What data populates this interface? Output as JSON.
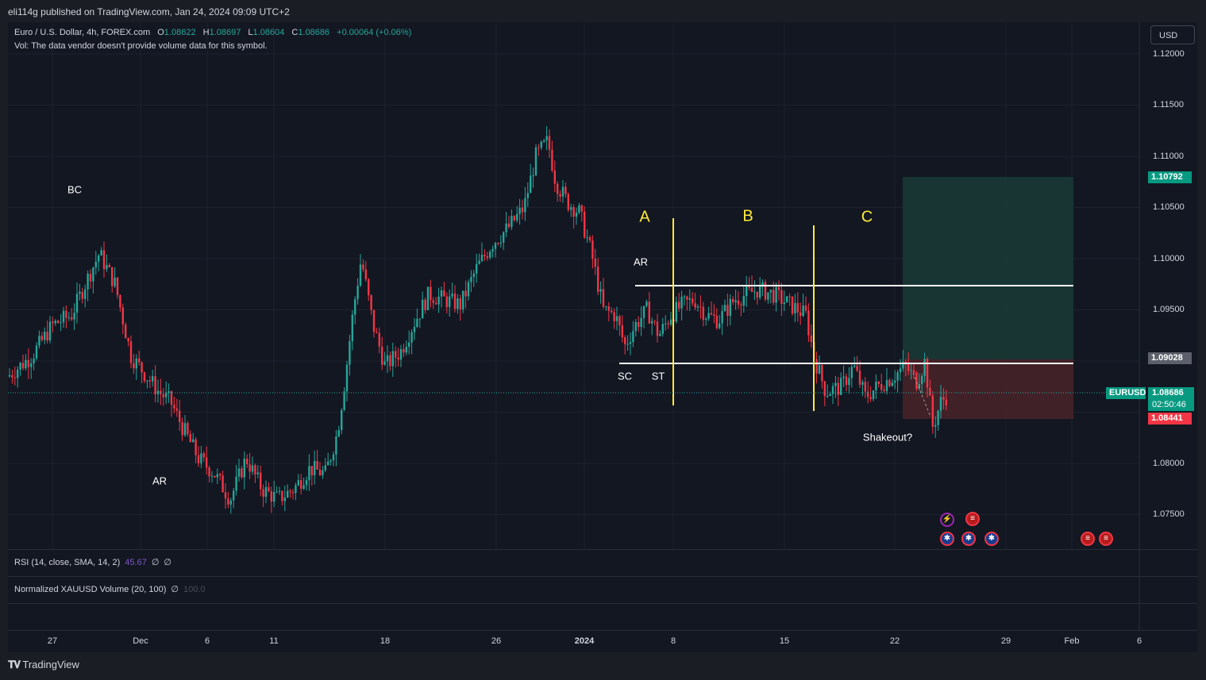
{
  "header": {
    "published_text": "eli114g published on TradingView.com, Jan 24, 2024 09:09 UTC+2"
  },
  "legend": {
    "symbol": "Euro / U.S. Dollar, 4h, FOREX.com",
    "o_label": "O",
    "o": "1.08622",
    "h_label": "H",
    "h": "1.08697",
    "l_label": "L",
    "l": "1.08604",
    "c_label": "C",
    "c": "1.08686",
    "change": "+0.00064 (+0.06%)",
    "vol_note": "Vol: The data vendor doesn't provide volume data for this symbol."
  },
  "currency_button": "USD",
  "y_axis": [
    "1.12000",
    "1.11500",
    "1.11000",
    "1.10500",
    "1.10000",
    "1.09500",
    "1.09000",
    "1.08500",
    "1.08000",
    "1.07500"
  ],
  "price_tags": {
    "target": "1.10792",
    "entry": "1.09028",
    "symbol": "EURUSD",
    "current": "1.08686",
    "countdown": "02:50:46",
    "stop": "1.08441"
  },
  "annotations": {
    "bc": "BC",
    "ar1": "AR",
    "ar2": "AR",
    "sc": "SC",
    "st": "ST",
    "shakeout": "Shakeout?",
    "phase_a": "A",
    "phase_b": "B",
    "phase_c": "C"
  },
  "indicators": {
    "rsi": {
      "label": "RSI (14, close, SMA, 14, 2)",
      "value": "45.67",
      "d1": "∅",
      "d2": "∅"
    },
    "xau": {
      "label": "Normalized XAUUSD Volume (20, 100)",
      "value": "∅",
      "extra": "100.0"
    }
  },
  "x_axis": [
    "27",
    "Dec",
    "6",
    "11",
    "18",
    "26",
    "2024",
    "8",
    "15",
    "22",
    "29",
    "Feb",
    "6"
  ],
  "branding": "TradingView",
  "colors": {
    "up": "#26a69a",
    "down": "#f23645",
    "bg": "#131722",
    "phase_line": "#ffeb3b",
    "target_zone": "#1a3a36",
    "stop_zone": "#4a2329"
  },
  "events": [
    "lightning-icon",
    "us-flag-icon",
    "eu-flag-icon",
    "eu-flag-icon",
    "eu-flag-icon",
    "us-flag-icon",
    "us-flag-icon"
  ]
}
